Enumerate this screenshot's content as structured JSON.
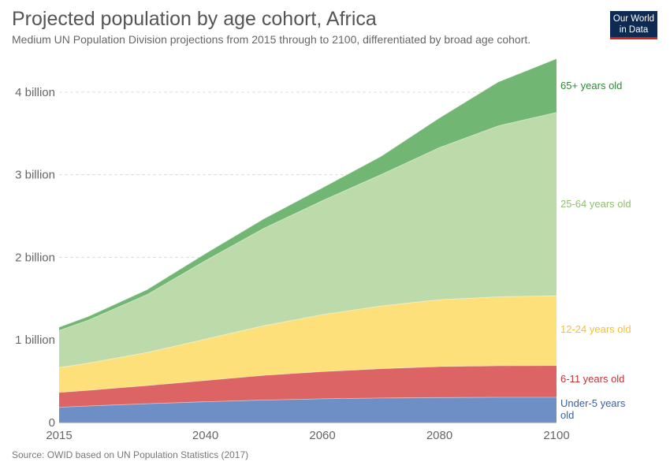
{
  "header": {
    "title": "Projected population by age cohort, Africa",
    "subtitle": "Medium UN Population Division projections from 2015 through to 2100, differentiated by broad age cohort."
  },
  "logo": {
    "line1": "Our World",
    "line2": "in Data"
  },
  "footer": {
    "source": "Source: OWID based on UN Population Statistics (2017)"
  },
  "chart_data": {
    "type": "area",
    "stacked": true,
    "title": "Projected population by age cohort, Africa",
    "subtitle": "Medium UN Population Division projections from 2015 through to 2100, differentiated by broad age cohort.",
    "xlim": [
      2015,
      2100
    ],
    "ylim": [
      0,
      4400000000
    ],
    "x_ticks": [
      2015,
      2040,
      2060,
      2080,
      2100
    ],
    "y_ticks": [
      {
        "value": 0,
        "label": "0"
      },
      {
        "value": 1000000000,
        "label": "1 billion"
      },
      {
        "value": 2000000000,
        "label": "2 billion"
      },
      {
        "value": 3000000000,
        "label": "3 billion"
      },
      {
        "value": 4000000000,
        "label": "4 billion"
      }
    ],
    "grid": "horizontal-dashed",
    "legend": "right-inline",
    "x": [
      2015,
      2020,
      2030,
      2040,
      2050,
      2060,
      2070,
      2080,
      2090,
      2100
    ],
    "series": [
      {
        "name": "Under-5 years old",
        "color": "#6d8fc6",
        "label_color": "#3a5fa6",
        "values": [
          185000000,
          200000000,
          228000000,
          252000000,
          272000000,
          287000000,
          297000000,
          303000000,
          305000000,
          305000000
        ]
      },
      {
        "name": "6-11 years old",
        "color": "#dc6464",
        "label_color": "#c23434",
        "values": [
          180000000,
          190000000,
          220000000,
          258000000,
          300000000,
          330000000,
          355000000,
          375000000,
          382000000,
          385000000
        ]
      },
      {
        "name": "12-24 years old",
        "color": "#fde07a",
        "label_color": "#f1c232",
        "values": [
          300000000,
          330000000,
          400000000,
          500000000,
          600000000,
          690000000,
          760000000,
          810000000,
          835000000,
          845000000
        ]
      },
      {
        "name": "25-64 years old",
        "color": "#bddbaa",
        "label_color": "#8fc16e",
        "values": [
          450000000,
          520000000,
          700000000,
          950000000,
          1180000000,
          1380000000,
          1590000000,
          1840000000,
          2070000000,
          2220000000
        ]
      },
      {
        "name": "65+ years old",
        "color": "#72b673",
        "label_color": "#2e8b34",
        "values": [
          40000000,
          45000000,
          60000000,
          85000000,
          115000000,
          155000000,
          220000000,
          360000000,
          530000000,
          650000000
        ]
      }
    ]
  }
}
